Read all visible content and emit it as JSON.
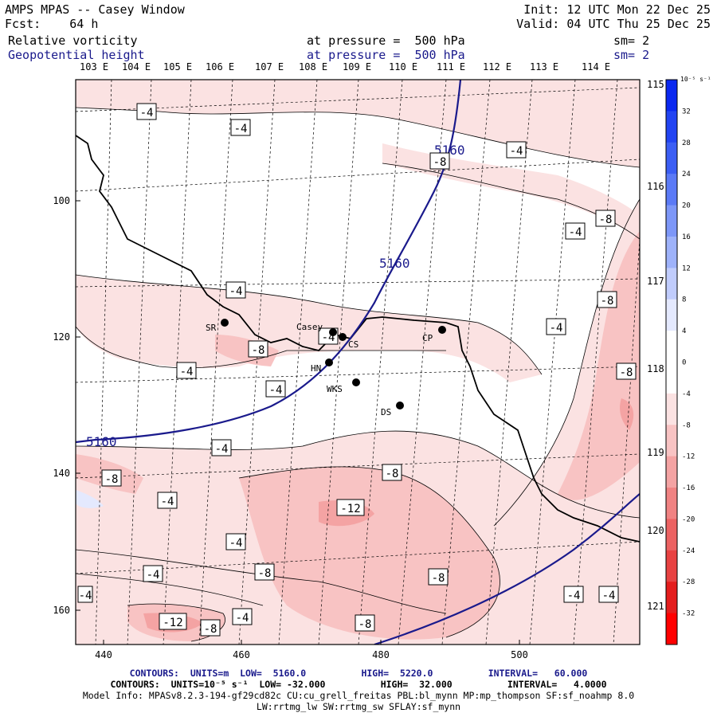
{
  "header": {
    "app_title": "AMPS MPAS -- Casey Window",
    "forecast": "Fcst:    64 h",
    "init": "Init: 12 UTC Mon 22 Dec 25",
    "valid": "Valid: 04 UTC Thu 25 Dec 25",
    "field1_name": "Relative vorticity",
    "field1_level": "at pressure =  500 hPa",
    "field1_sm": "sm= 2",
    "field2_name": "Geopotential height",
    "field2_level": "at pressure =  500 hPa",
    "field2_sm": "sm= 2"
  },
  "top_lon_labels": [
    "103 E",
    "104 E",
    "105 E",
    "106 E",
    "107 E",
    "108 E",
    "109 E",
    "110 E",
    "111 E",
    "112 E",
    "113 E",
    "114 E"
  ],
  "right_lon_labels": [
    "115 E",
    "116 E",
    "117 E",
    "118 E",
    "119 E",
    "120 E",
    "121 E"
  ],
  "x_axis_ticks": [
    "440",
    "460",
    "480",
    "500"
  ],
  "y_axis_ticks": [
    "100",
    "120",
    "140",
    "160"
  ],
  "stations": [
    {
      "name": "SR"
    },
    {
      "name": "Casey"
    },
    {
      "name": "CS"
    },
    {
      "name": "CP"
    },
    {
      "name": "HN"
    },
    {
      "name": "WKS"
    },
    {
      "name": "DS"
    }
  ],
  "contour_labels": [
    "-4",
    "-4",
    "-4",
    "-8",
    "-8",
    "-4",
    "-4",
    "-8",
    "-4",
    "-8",
    "-4",
    "-4",
    "-8",
    "-4",
    "-4",
    "-8",
    "-12",
    "-4",
    "-4",
    "-8",
    "-8",
    "-4",
    "-4",
    "-4",
    "-12",
    "-8",
    "-8",
    "-8",
    "-4",
    "-4"
  ],
  "height_labels": [
    "5160",
    "5160",
    "5160"
  ],
  "colorbar": {
    "unit": "10⁻⁵ s⁻¹",
    "ticks": [
      "32",
      "28",
      "24",
      "20",
      "16",
      "12",
      "8",
      "4",
      "0",
      "-4",
      "-8",
      "-12",
      "-16",
      "-20",
      "-24",
      "-28",
      "-32"
    ],
    "colors": [
      "#0a28f0",
      "#2244f2",
      "#3b5ef4",
      "#5b7af6",
      "#7d97f8",
      "#9eb2fa",
      "#c0ccfc",
      "#e4e9fe",
      "#ffffff",
      "#ffffff",
      "#fbe2e2",
      "#f8c3c3",
      "#f4a3a3",
      "#f08282",
      "#ec6262",
      "#e84242",
      "#e41d1d",
      "#ff0000"
    ]
  },
  "footer": {
    "line1": "CONTOURS:  UNITS=m  LOW=  5160.0          HIGH=  5220.0          INTERVAL=   60.000",
    "line2": "CONTOURS:  UNITS=10⁻⁵ s⁻¹  LOW= -32.000          HIGH=  32.000          INTERVAL=   4.0000",
    "line3": "Model Info: MPASv8.2.3-194-gf29cd82c CU:cu_grell_freitas PBL:bl_mynn MP:mp_thompson SF:sf_noahmp 8.0",
    "line4": "LW:rrtmg_lw SW:rrtmg_sw SFLAY:sf_mynn"
  },
  "colors": {
    "height_contour": "#1a1a8c",
    "coastline": "#000000",
    "light_fill": "#fbe2e2",
    "mid_fill": "#f8c3c3",
    "strong_fill": "#f4a3a3"
  }
}
